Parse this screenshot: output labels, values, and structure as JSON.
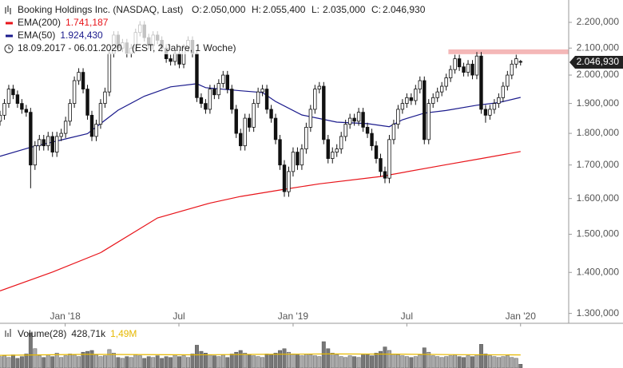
{
  "chart_data": {
    "type": "candlestick",
    "title": "Booking Holdings Inc. (NASDAQ, Last)",
    "quote": [
      {
        "label": "O:",
        "value": "2.050,000"
      },
      {
        "label": "H:",
        "value": "2.055,400"
      },
      {
        "label": "L:",
        "value": "2.035,000"
      },
      {
        "label": "C:",
        "value": "2.046,930"
      }
    ],
    "period": "18.09.2017 - 06.01.2020",
    "period_note": "(EST, 2 Jahre, 1 Woche)",
    "ylog": true,
    "xlim": [
      0,
      130
    ],
    "ylim": [
      1277,
      2225.5
    ],
    "xticks": [
      {
        "value": 14.9,
        "label": "Jan '18"
      },
      {
        "value": 40.9,
        "label": "Jul"
      },
      {
        "value": 67,
        "label": "Jan '19"
      },
      {
        "value": 93,
        "label": "Jul"
      },
      {
        "value": 119,
        "label": "Jan '20"
      }
    ],
    "yticks": [
      {
        "value": 2200,
        "label": "2.200,000"
      },
      {
        "value": 2100,
        "label": "2.100,000"
      },
      {
        "value": 2000,
        "label": "2.000,000"
      },
      {
        "value": 1900,
        "label": "1.900,000"
      },
      {
        "value": 1800,
        "label": "1.800,000"
      },
      {
        "value": 1700,
        "label": "1.700,000"
      },
      {
        "value": 1600,
        "label": "1.600,000"
      },
      {
        "value": 1500,
        "label": "1.500,000"
      },
      {
        "value": 1400,
        "label": "1.400,000"
      },
      {
        "value": 1300,
        "label": "1.300,000"
      }
    ],
    "last_price": {
      "value": 2046.93,
      "label": "2.046,930",
      "color": "#222222"
    },
    "zone": {
      "from": 102.5,
      "low": 2077,
      "high": 2095,
      "color": "#f4b8b8"
    },
    "candles": [
      [
        1840,
        1875,
        1825,
        1860
      ],
      [
        1860,
        1915,
        1845,
        1900
      ],
      [
        1900,
        1965,
        1885,
        1950
      ],
      [
        1950,
        1965,
        1915,
        1930
      ],
      [
        1930,
        1945,
        1885,
        1900
      ],
      [
        1900,
        1915,
        1865,
        1880
      ],
      [
        1880,
        1895,
        1855,
        1870
      ],
      [
        1870,
        1885,
        1630,
        1700
      ],
      [
        1700,
        1775,
        1685,
        1760
      ],
      [
        1760,
        1795,
        1745,
        1780
      ],
      [
        1780,
        1795,
        1745,
        1760
      ],
      [
        1760,
        1805,
        1745,
        1790
      ],
      [
        1790,
        1805,
        1725,
        1740
      ],
      [
        1740,
        1805,
        1725,
        1790
      ],
      [
        1790,
        1815,
        1775,
        1800
      ],
      [
        1800,
        1855,
        1785,
        1840
      ],
      [
        1840,
        1915,
        1825,
        1900
      ],
      [
        1900,
        1995,
        1885,
        1980
      ],
      [
        1980,
        2025,
        1965,
        2010
      ],
      [
        2010,
        2025,
        1935,
        1950
      ],
      [
        1950,
        1965,
        1845,
        1860
      ],
      [
        1860,
        1875,
        1775,
        1790
      ],
      [
        1790,
        1845,
        1775,
        1830
      ],
      [
        1830,
        1915,
        1815,
        1900
      ],
      [
        1900,
        1955,
        1885,
        1940
      ],
      [
        1940,
        2095,
        1925,
        2080
      ],
      [
        2080,
        2165,
        2065,
        2150
      ],
      [
        2150,
        2165,
        2085,
        2100
      ],
      [
        2100,
        2135,
        2085,
        2120
      ],
      [
        2120,
        2135,
        2065,
        2080
      ],
      [
        2080,
        2115,
        2065,
        2100
      ],
      [
        2100,
        2175,
        2085,
        2160
      ],
      [
        2160,
        2205,
        2145,
        2190
      ],
      [
        2190,
        2205,
        2125,
        2140
      ],
      [
        2140,
        2155,
        2095,
        2110
      ],
      [
        2110,
        2165,
        2095,
        2150
      ],
      [
        2150,
        2165,
        2115,
        2130
      ],
      [
        2130,
        2145,
        2085,
        2100
      ],
      [
        2100,
        2115,
        2045,
        2060
      ],
      [
        2060,
        2075,
        2035,
        2050
      ],
      [
        2050,
        2095,
        2035,
        2080
      ],
      [
        2080,
        2095,
        2025,
        2040
      ],
      [
        2040,
        2115,
        2025,
        2100
      ],
      [
        2100,
        2145,
        2085,
        2130
      ],
      [
        2130,
        2145,
        2065,
        2080
      ],
      [
        2080,
        2095,
        1905,
        1920
      ],
      [
        1920,
        1935,
        1885,
        1900
      ],
      [
        1900,
        1915,
        1865,
        1880
      ],
      [
        1880,
        1965,
        1865,
        1950
      ],
      [
        1950,
        1965,
        1915,
        1930
      ],
      [
        1930,
        1985,
        1915,
        1970
      ],
      [
        1970,
        2015,
        1955,
        2000
      ],
      [
        2000,
        2015,
        1935,
        1950
      ],
      [
        1950,
        1965,
        1865,
        1880
      ],
      [
        1880,
        1895,
        1785,
        1800
      ],
      [
        1800,
        1815,
        1745,
        1760
      ],
      [
        1760,
        1865,
        1745,
        1850
      ],
      [
        1850,
        1865,
        1805,
        1820
      ],
      [
        1820,
        1915,
        1805,
        1900
      ],
      [
        1900,
        1955,
        1885,
        1940
      ],
      [
        1940,
        1965,
        1925,
        1950
      ],
      [
        1950,
        1965,
        1865,
        1880
      ],
      [
        1880,
        1895,
        1835,
        1850
      ],
      [
        1850,
        1865,
        1765,
        1780
      ],
      [
        1780,
        1795,
        1685,
        1700
      ],
      [
        1700,
        1715,
        1605,
        1620
      ],
      [
        1620,
        1695,
        1605,
        1680
      ],
      [
        1680,
        1755,
        1665,
        1740
      ],
      [
        1740,
        1755,
        1685,
        1700
      ],
      [
        1700,
        1765,
        1685,
        1750
      ],
      [
        1750,
        1835,
        1735,
        1820
      ],
      [
        1820,
        1895,
        1805,
        1880
      ],
      [
        1880,
        1965,
        1865,
        1950
      ],
      [
        1950,
        1975,
        1935,
        1960
      ],
      [
        1960,
        1975,
        1765,
        1780
      ],
      [
        1780,
        1795,
        1705,
        1720
      ],
      [
        1720,
        1755,
        1705,
        1740
      ],
      [
        1740,
        1765,
        1725,
        1750
      ],
      [
        1750,
        1805,
        1735,
        1790
      ],
      [
        1790,
        1845,
        1775,
        1830
      ],
      [
        1830,
        1865,
        1815,
        1850
      ],
      [
        1850,
        1865,
        1825,
        1840
      ],
      [
        1840,
        1885,
        1825,
        1870
      ],
      [
        1870,
        1885,
        1805,
        1820
      ],
      [
        1820,
        1835,
        1785,
        1800
      ],
      [
        1800,
        1815,
        1745,
        1760
      ],
      [
        1760,
        1775,
        1705,
        1720
      ],
      [
        1720,
        1735,
        1665,
        1680
      ],
      [
        1680,
        1695,
        1645,
        1660
      ],
      [
        1660,
        1795,
        1645,
        1780
      ],
      [
        1780,
        1845,
        1765,
        1830
      ],
      [
        1830,
        1895,
        1815,
        1880
      ],
      [
        1880,
        1915,
        1865,
        1900
      ],
      [
        1900,
        1935,
        1885,
        1920
      ],
      [
        1920,
        1935,
        1895,
        1910
      ],
      [
        1910,
        1965,
        1895,
        1950
      ],
      [
        1950,
        1995,
        1935,
        1980
      ],
      [
        1980,
        1995,
        1765,
        1780
      ],
      [
        1780,
        1915,
        1765,
        1900
      ],
      [
        1900,
        1935,
        1885,
        1920
      ],
      [
        1920,
        1955,
        1905,
        1940
      ],
      [
        1940,
        1975,
        1925,
        1960
      ],
      [
        1960,
        2005,
        1945,
        1990
      ],
      [
        1990,
        2035,
        1975,
        2020
      ],
      [
        2020,
        2075,
        2005,
        2060
      ],
      [
        2060,
        2075,
        2015,
        2030
      ],
      [
        2030,
        2045,
        1995,
        2010
      ],
      [
        2010,
        2055,
        1995,
        2040
      ],
      [
        2040,
        2055,
        1985,
        2000
      ],
      [
        2000,
        2085,
        1985,
        2070
      ],
      [
        2070,
        2085,
        1865,
        1880
      ],
      [
        1880,
        1895,
        1835,
        1860
      ],
      [
        1860,
        1895,
        1845,
        1880
      ],
      [
        1880,
        1915,
        1865,
        1900
      ],
      [
        1900,
        1935,
        1885,
        1920
      ],
      [
        1920,
        1975,
        1905,
        1960
      ],
      [
        1960,
        2015,
        1945,
        2000
      ],
      [
        2000,
        2055,
        1985,
        2040
      ],
      [
        2040,
        2075,
        2025,
        2060
      ],
      [
        2050,
        2055.4,
        2035,
        2046.93
      ]
    ],
    "series": [
      {
        "name": "EMA(200)",
        "value_label": "1.741,187",
        "color": "#e8141a",
        "x": [
          0,
          12,
          23,
          36,
          48,
          55,
          65,
          73,
          87,
          102,
          110,
          119
        ],
        "values": [
          1354,
          1401,
          1451,
          1545,
          1587,
          1606,
          1627,
          1643,
          1665,
          1701,
          1720,
          1742
        ]
      },
      {
        "name": "EMA(50)",
        "value_label": "1.924,430",
        "color": "#1a1a8c",
        "x": [
          0,
          7,
          15,
          20,
          27,
          33,
          39,
          45,
          47,
          55,
          60,
          63,
          69,
          77,
          84,
          89,
          92,
          97,
          102,
          109,
          114,
          119
        ],
        "values": [
          1727,
          1755,
          1782,
          1799,
          1877,
          1925,
          1958,
          1969,
          1955,
          1944,
          1938,
          1907,
          1861,
          1837,
          1832,
          1822,
          1845,
          1867,
          1876,
          1894,
          1903,
          1921
        ]
      }
    ],
    "volume": {
      "name": "Volume(28)",
      "value_label": "428,71k",
      "ema_label": "1,49M",
      "ema_color": "#e6b800",
      "color": "#aaaaaa",
      "ylim": [
        0,
        5000
      ],
      "values": [
        1300,
        1400,
        1200,
        1500,
        1100,
        1300,
        1600,
        4000,
        2200,
        1400,
        1200,
        1500,
        1300,
        1700,
        1200,
        1400,
        1600,
        1500,
        1300,
        1800,
        1900,
        2000,
        1500,
        1300,
        1400,
        2100,
        1700,
        1200,
        1100,
        1300,
        1200,
        1500,
        1400,
        1100,
        1300,
        1200,
        1400,
        1100,
        1300,
        1200,
        1500,
        1300,
        1400,
        1200,
        1600,
        2600,
        1900,
        1700,
        1500,
        1400,
        1300,
        1500,
        1200,
        1600,
        1800,
        2000,
        1700,
        1500,
        1400,
        1300,
        1200,
        1600,
        1500,
        1700,
        2000,
        2200,
        1800,
        1600,
        1500,
        1400,
        1600,
        1500,
        1400,
        1300,
        3000,
        2200,
        1700,
        1500,
        1300,
        1200,
        1400,
        1300,
        1200,
        1500,
        1600,
        1400,
        1700,
        1900,
        2400,
        2000,
        1600,
        1500,
        1400,
        1300,
        1200,
        1300,
        1500,
        2300,
        1800,
        1400,
        1300,
        1200,
        1300,
        1400,
        1500,
        1300,
        1200,
        1400,
        1300,
        1500,
        2700,
        1600,
        1400,
        1300,
        1200,
        1300,
        1400,
        1200,
        1100,
        428.71
      ],
      "ema_x": [
        0,
        20,
        45,
        60,
        75,
        90,
        105,
        119
      ],
      "ema_values": [
        1450,
        1550,
        1500,
        1550,
        1600,
        1580,
        1520,
        1490
      ]
    }
  }
}
